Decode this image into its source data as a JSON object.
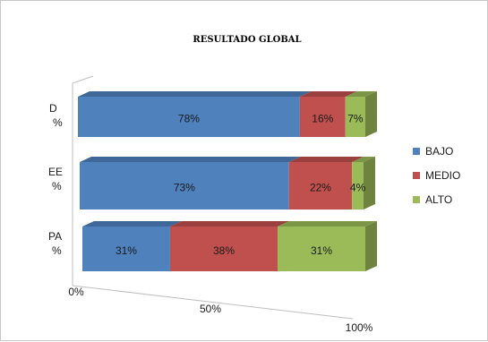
{
  "chart_data": {
    "type": "bar",
    "stacked": true,
    "orientation": "horizontal",
    "three_d": true,
    "title": "RESULTADO GLOBAL",
    "categories": [
      [
        "D",
        "%"
      ],
      [
        "EE",
        "%"
      ],
      [
        "PA",
        "%"
      ]
    ],
    "series": [
      {
        "name": "BAJO",
        "color": "#4f81bd",
        "values": [
          78,
          73,
          31
        ],
        "labels": [
          "78%",
          "73%",
          "31%"
        ]
      },
      {
        "name": "MEDIO",
        "color": "#c0504d",
        "values": [
          16,
          22,
          38
        ],
        "labels": [
          "16%",
          "22%",
          "38%"
        ]
      },
      {
        "name": "ALTO",
        "color": "#9bbb59",
        "values": [
          7,
          4,
          31
        ],
        "labels": [
          "7%",
          "4%",
          "31%"
        ]
      }
    ],
    "x_ticks": [
      "0%",
      "50%",
      "100%"
    ],
    "xlim": [
      0,
      100
    ],
    "legend_position": "right",
    "grid": false
  }
}
